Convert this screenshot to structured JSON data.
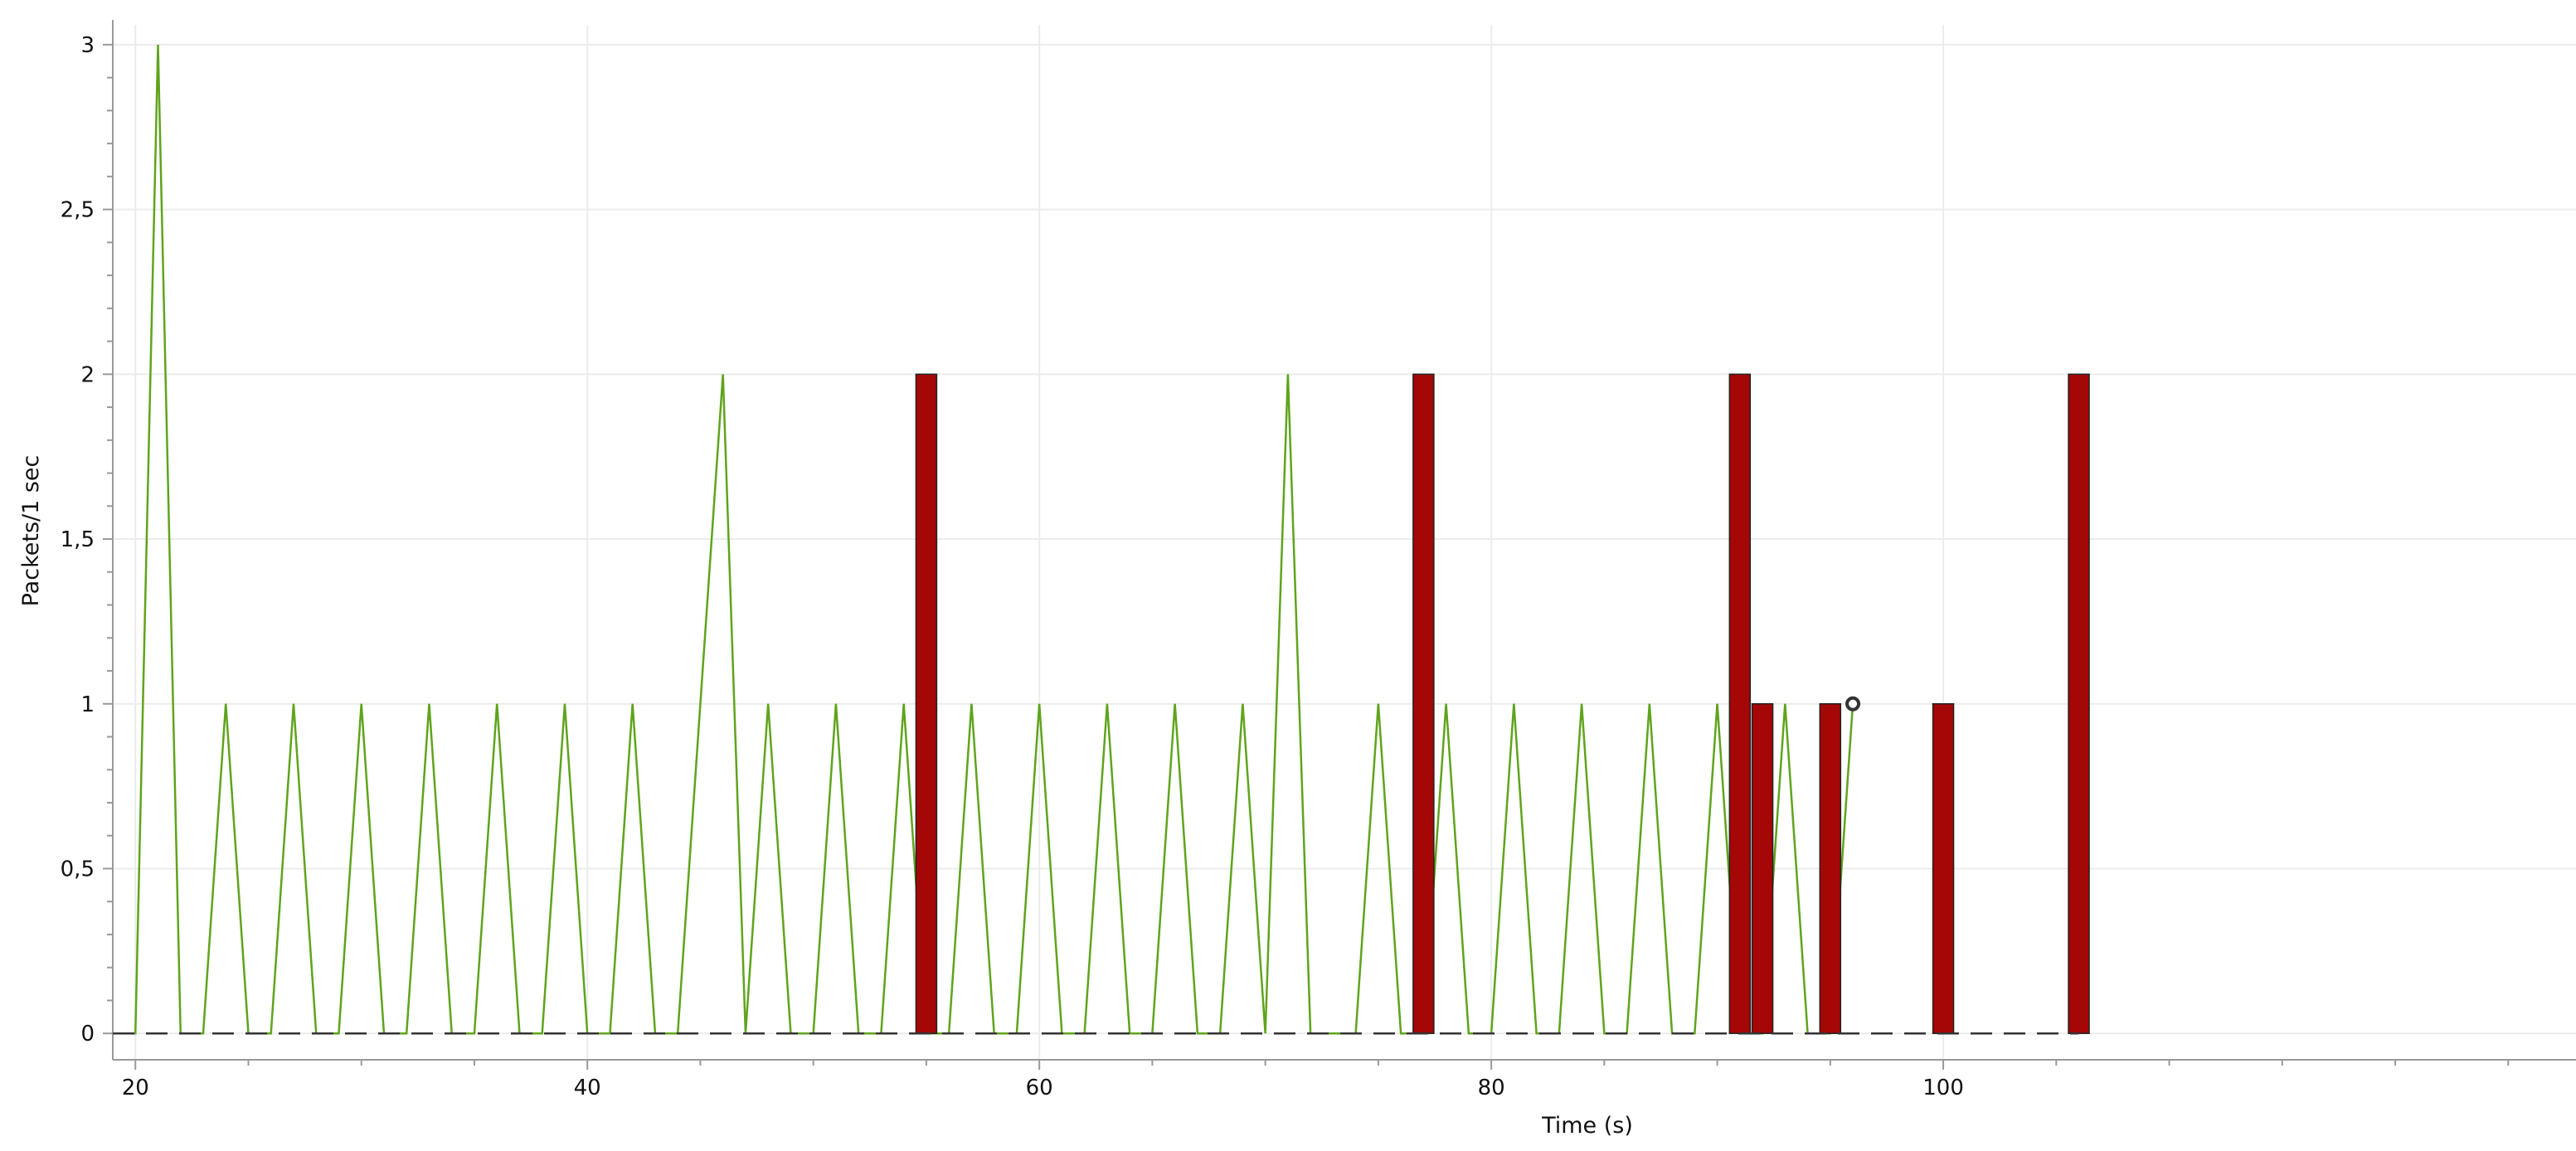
{
  "chart_data": {
    "type": "line",
    "title": "",
    "xlabel": "Time (s)",
    "ylabel": "Packets/1 sec",
    "xlim": [
      19,
      128
    ],
    "ylim": [
      -0.08,
      3.06
    ],
    "x_ticks": [
      20,
      40,
      60,
      80,
      100
    ],
    "x_tick_labels": [
      "20",
      "40",
      "60",
      "80",
      "100"
    ],
    "y_ticks": [
      0,
      0.5,
      1,
      1.5,
      2,
      2.5,
      3
    ],
    "y_tick_labels": [
      "0",
      "0,5",
      "1",
      "1,5",
      "2",
      "2,5",
      "3"
    ],
    "grid": true,
    "series": [
      {
        "style": "line",
        "color": "#5fa41c",
        "x": [
          19,
          20,
          21,
          22,
          23,
          24,
          25,
          26,
          27,
          28,
          29,
          30,
          31,
          32,
          33,
          34,
          35,
          36,
          37,
          38,
          39,
          40,
          41,
          42,
          43,
          44,
          45,
          46,
          47,
          48,
          49,
          50,
          51,
          52,
          53,
          54,
          55,
          56,
          57,
          58,
          59,
          60,
          61,
          62,
          63,
          64,
          65,
          66,
          67,
          68,
          69,
          70,
          71,
          72,
          73,
          74,
          75,
          76,
          77,
          78,
          79,
          80,
          81,
          82,
          83,
          84,
          85,
          86,
          87,
          88,
          89,
          90,
          91,
          92,
          93,
          94,
          95,
          96
        ],
        "values": [
          0,
          0,
          3,
          0,
          0,
          1,
          0,
          0,
          1,
          0,
          0,
          1,
          0,
          0,
          1,
          0,
          0,
          1,
          0,
          0,
          1,
          0,
          0,
          1,
          0,
          0,
          1,
          2,
          0,
          1,
          0,
          0,
          1,
          0,
          0,
          1,
          0,
          0,
          1,
          0,
          0,
          1,
          0,
          0,
          1,
          0,
          0,
          1,
          0,
          0,
          1,
          0,
          2,
          0,
          0,
          0,
          1,
          0,
          0,
          1,
          0,
          0,
          1,
          0,
          0,
          1,
          0,
          0,
          1,
          0,
          0,
          1,
          0,
          0,
          1,
          0,
          0,
          1
        ]
      },
      {
        "style": "bar",
        "color": "#a50606",
        "x": [
          55,
          77,
          91,
          92,
          95,
          100,
          106
        ],
        "values": [
          2,
          2,
          2,
          1,
          1,
          1,
          2
        ]
      },
      {
        "style": "dashed",
        "color": "#333333",
        "x": [
          19,
          106
        ],
        "values": [
          0,
          0
        ]
      }
    ],
    "marker": {
      "x": 96,
      "value": 1,
      "color": "#333333"
    }
  }
}
